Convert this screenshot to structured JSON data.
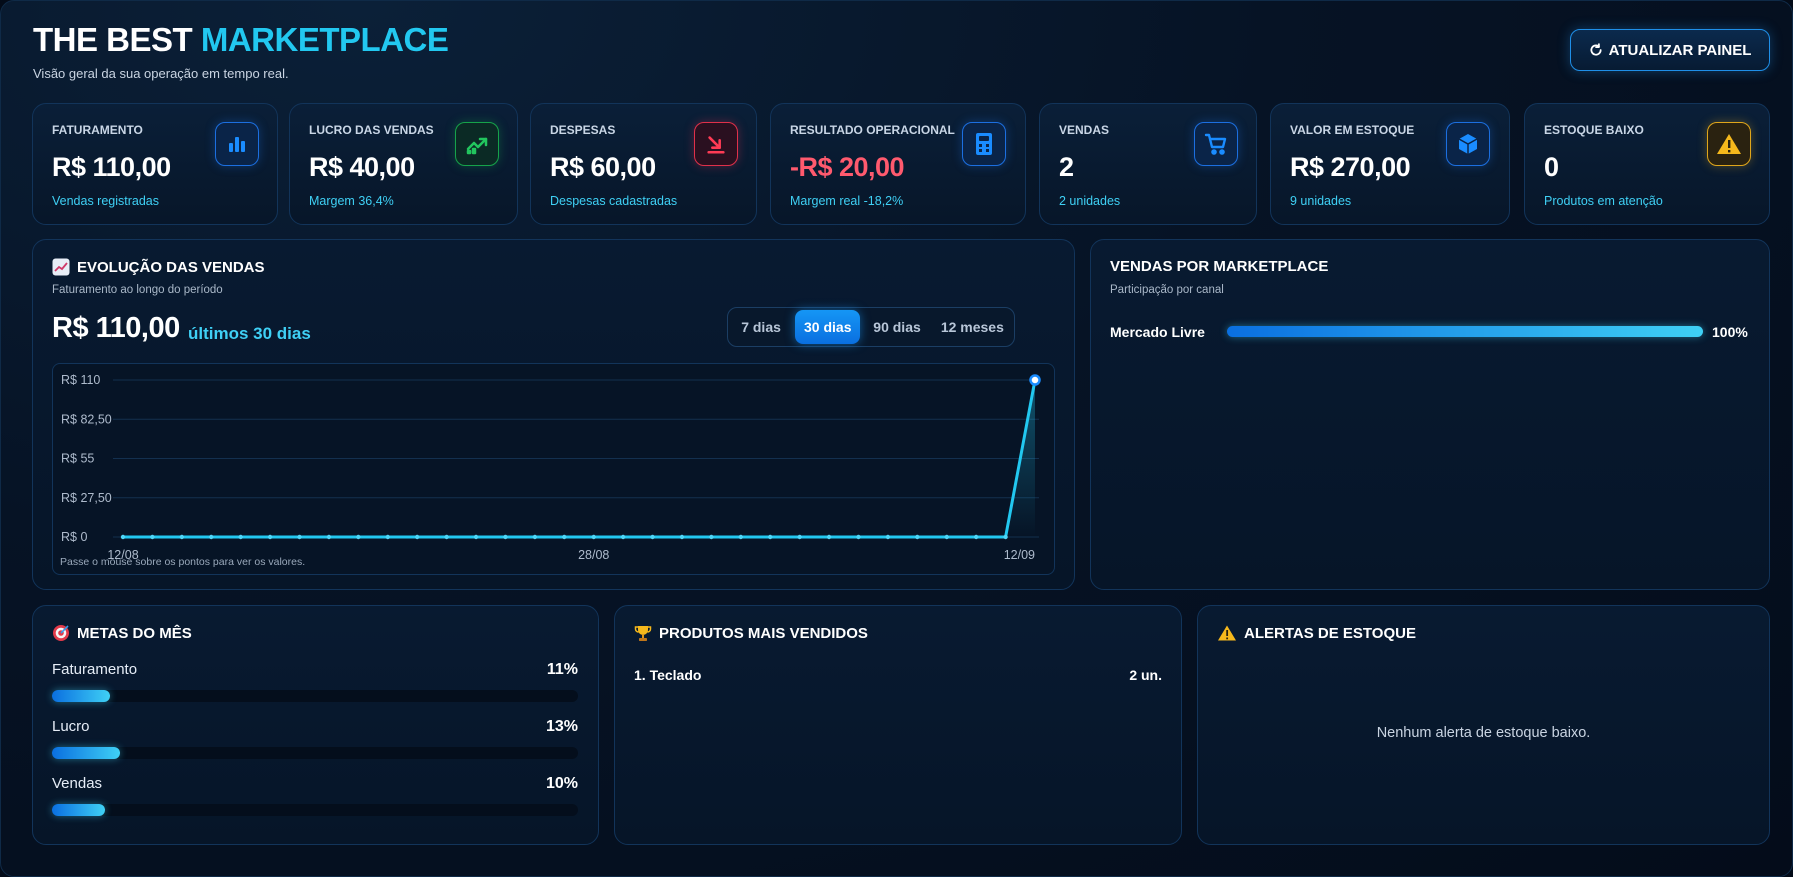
{
  "header": {
    "title_main": "THE BEST",
    "title_accent": "MARKETPLACE",
    "subtitle": "Visão geral da sua operação em tempo real.",
    "refresh_label": "ATUALIZAR PAINEL",
    "refresh_icon": "refresh-icon"
  },
  "cards": [
    {
      "label": "FATURAMENTO",
      "value": "R$ 110,00",
      "sub": "Vendas registradas",
      "icon": "bar-chart-icon",
      "color": "#1c6fe0"
    },
    {
      "label": "LUCRO DAS VENDAS",
      "value": "R$ 40,00",
      "sub": "Margem 36,4%",
      "icon": "trending-up-icon",
      "color": "#16a34a"
    },
    {
      "label": "DESPESAS",
      "value": "R$ 60,00",
      "sub": "Despesas cadastradas",
      "icon": "arrow-down-right-icon",
      "color": "#e0304a"
    },
    {
      "label": "RESULTADO OPERACIONAL",
      "value": "-R$ 20,00",
      "sub": "Margem real -18,2%",
      "icon": "calculator-icon",
      "color": "#ff5a6e"
    },
    {
      "label": "VENDAS",
      "value": "2",
      "sub": "2 unidades",
      "icon": "cart-icon",
      "color": "#1c6fe0"
    },
    {
      "label": "VALOR EM ESTOQUE",
      "value": "R$ 270,00",
      "sub": "9 unidades",
      "icon": "box-icon",
      "color": "#1c6fe0"
    },
    {
      "label": "ESTOQUE BAIXO",
      "value": "0",
      "sub": "Produtos em atenção",
      "icon": "warning-icon",
      "color": "#e0a61a"
    }
  ],
  "sales_evolution": {
    "icon": "chart-emoji-icon",
    "title": "EVOLUÇÃO DAS VENDAS",
    "subtitle": "Faturamento ao longo do período",
    "total": "R$ 110,00",
    "period_label": "últimos 30 dias",
    "periods": [
      "7 dias",
      "30 dias",
      "90 dias",
      "12 meses"
    ],
    "active_period": "30 dias",
    "hint": "Passe o mouse sobre os pontos para ver os valores."
  },
  "chart_data": {
    "type": "line",
    "title": "EVOLUÇÃO DAS VENDAS",
    "ylim": [
      0,
      110
    ],
    "yticks": [
      0,
      27.5,
      55,
      82.5,
      110
    ],
    "ytick_labels": [
      "R$ 0",
      "R$ 27,50",
      "R$ 55",
      "R$ 82,50",
      "R$ 110"
    ],
    "xtick_labels": [
      "12/08",
      "28/08",
      "12/09"
    ],
    "x": [
      "12/08",
      "13/08",
      "14/08",
      "15/08",
      "16/08",
      "17/08",
      "18/08",
      "19/08",
      "20/08",
      "21/08",
      "22/08",
      "23/08",
      "24/08",
      "25/08",
      "26/08",
      "27/08",
      "28/08",
      "29/08",
      "30/08",
      "31/08",
      "01/09",
      "02/09",
      "03/09",
      "04/09",
      "05/09",
      "06/09",
      "07/09",
      "08/09",
      "09/09",
      "10/09",
      "11/09",
      "12/09"
    ],
    "series": [
      {
        "values": [
          0,
          0,
          0,
          0,
          0,
          0,
          0,
          0,
          0,
          0,
          0,
          0,
          0,
          0,
          0,
          0,
          0,
          0,
          0,
          0,
          0,
          0,
          0,
          0,
          0,
          0,
          0,
          0,
          0,
          0,
          0,
          110
        ]
      }
    ],
    "grid": true,
    "line_color": "#22c8f0"
  },
  "marketplace": {
    "title": "VENDAS POR MARKETPLACE",
    "subtitle": "Participação por canal",
    "items": [
      {
        "name": "Mercado Livre",
        "pct_label": "100%",
        "fraction": 1.0
      }
    ]
  },
  "goals": {
    "icon": "target-icon",
    "title": "METAS DO MÊS",
    "items": [
      {
        "label": "Faturamento",
        "pct_label": "11%",
        "fraction": 0.11
      },
      {
        "label": "Lucro",
        "pct_label": "13%",
        "fraction": 0.13
      },
      {
        "label": "Vendas",
        "pct_label": "10%",
        "fraction": 0.1
      }
    ]
  },
  "top_products": {
    "icon": "trophy-icon",
    "title": "PRODUTOS MAIS VENDIDOS",
    "items": [
      {
        "name": "1. Teclado",
        "qty": "2 un."
      }
    ]
  },
  "stock_alerts": {
    "icon": "warning-icon",
    "title": "ALERTAS DE ESTOQUE",
    "empty": "Nenhum alerta de estoque baixo."
  }
}
